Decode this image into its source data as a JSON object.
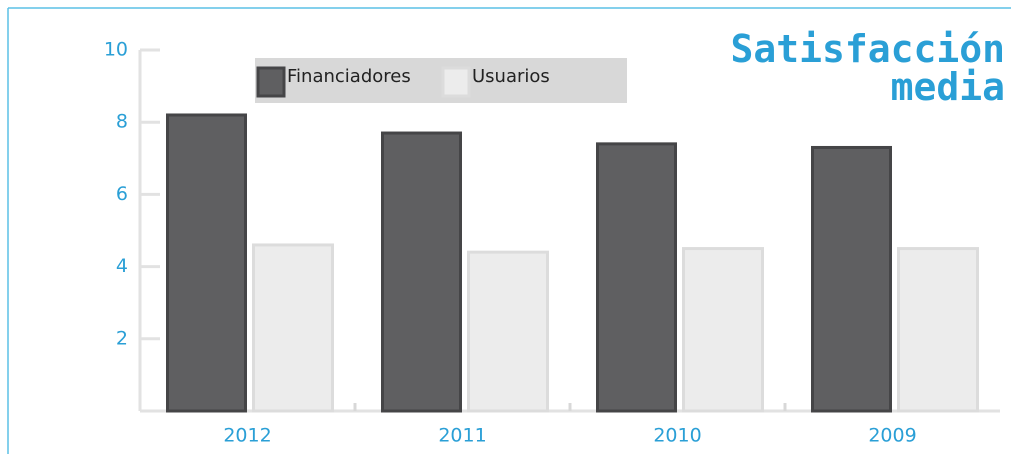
{
  "chart_data": {
    "type": "bar",
    "title": "Satisfacción media",
    "categories": [
      "2012",
      "2011",
      "2010",
      "2009"
    ],
    "series": [
      {
        "name": "Financiadores",
        "color": "#5f5f61",
        "values": [
          8.2,
          7.7,
          7.4,
          7.3
        ]
      },
      {
        "name": "Usuarios",
        "color": "#ececec",
        "values": [
          4.6,
          4.4,
          4.5,
          4.5
        ]
      }
    ],
    "ylim": [
      0,
      10
    ],
    "yticks": [
      2,
      4,
      6,
      8,
      10
    ]
  }
}
